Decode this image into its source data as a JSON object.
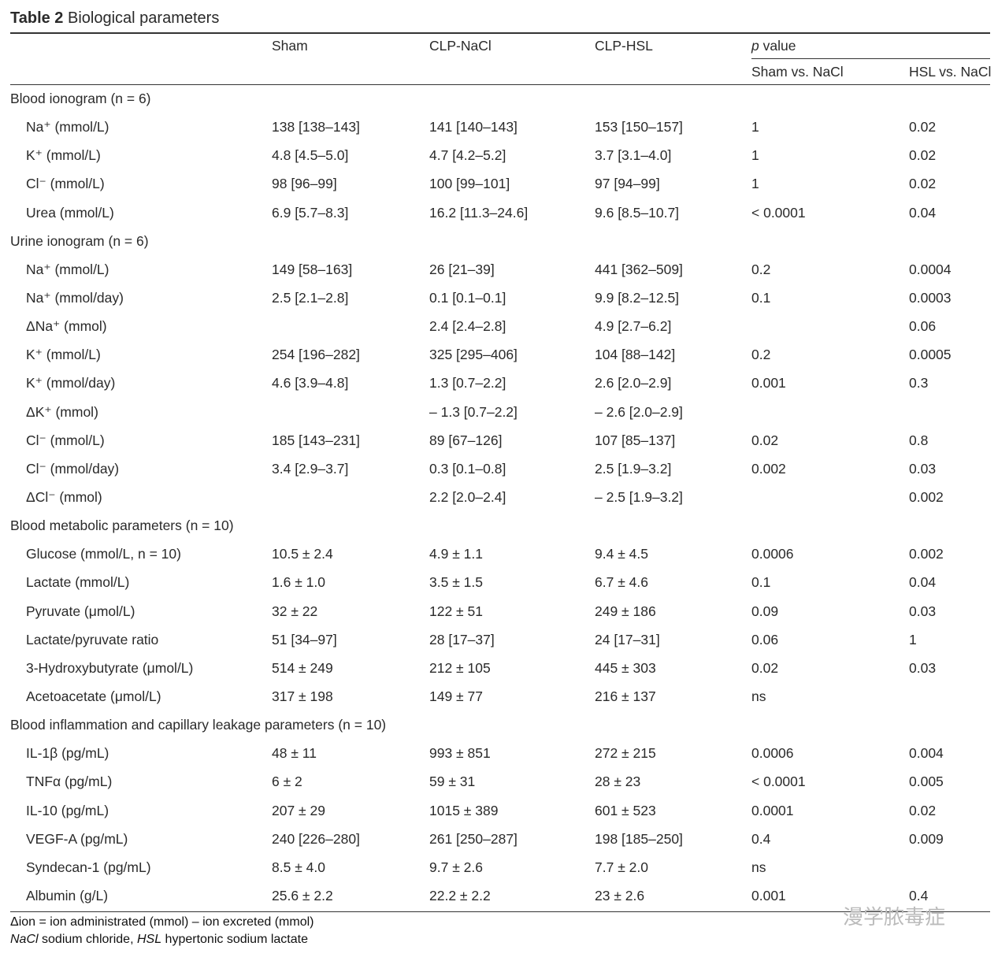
{
  "header": {
    "label": "Table 2",
    "caption": "Biological parameters"
  },
  "table": {
    "columns": [
      "Sham",
      "CLP-NaCl",
      "CLP-HSL"
    ],
    "pgroup": {
      "symbol": "p",
      "text": "value",
      "subcolumns": [
        "Sham vs. NaCl",
        "HSL vs. NaCl"
      ]
    },
    "sections": [
      {
        "title": "Blood ionogram (n = 6)",
        "rows": [
          {
            "label": "Na⁺ (mmol/L)",
            "cells": [
              "138 [138–143]",
              "141 [140–143]",
              "153 [150–157]",
              "1",
              "0.02"
            ]
          },
          {
            "label": "K⁺ (mmol/L)",
            "cells": [
              "4.8 [4.5–5.0]",
              "4.7 [4.2–5.2]",
              "3.7 [3.1–4.0]",
              "1",
              "0.02"
            ]
          },
          {
            "label": "Cl⁻ (mmol/L)",
            "cells": [
              "98 [96–99]",
              "100 [99–101]",
              "97 [94–99]",
              "1",
              "0.02"
            ]
          },
          {
            "label": "Urea (mmol/L)",
            "cells": [
              "6.9 [5.7–8.3]",
              "16.2 [11.3–24.6]",
              "9.6 [8.5–10.7]",
              "< 0.0001",
              "0.04"
            ]
          }
        ]
      },
      {
        "title": "Urine ionogram (n = 6)",
        "rows": [
          {
            "label": "Na⁺ (mmol/L)",
            "cells": [
              "149 [58–163]",
              "26 [21–39]",
              "441 [362–509]",
              "0.2",
              "0.0004"
            ]
          },
          {
            "label": "Na⁺ (mmol/day)",
            "cells": [
              "2.5 [2.1–2.8]",
              "0.1 [0.1–0.1]",
              "9.9 [8.2–12.5]",
              "0.1",
              "0.0003"
            ]
          },
          {
            "label": "ΔNa⁺ (mmol)",
            "cells": [
              null,
              "2.4 [2.4–2.8]",
              "4.9 [2.7–6.2]",
              null,
              "0.06"
            ]
          },
          {
            "label": "K⁺ (mmol/L)",
            "cells": [
              "254 [196–282]",
              "325 [295–406]",
              "104 [88–142]",
              "0.2",
              "0.0005"
            ]
          },
          {
            "label": "K⁺ (mmol/day)",
            "cells": [
              "4.6 [3.9–4.8]",
              "1.3 [0.7–2.2]",
              "2.6 [2.0–2.9]",
              "0.001",
              "0.3"
            ]
          },
          {
            "label": "ΔK⁺ (mmol)",
            "cells": [
              null,
              "– 1.3 [0.7–2.2]",
              "– 2.6 [2.0–2.9]",
              null,
              null
            ]
          },
          {
            "label": "Cl⁻ (mmol/L)",
            "cells": [
              "185 [143–231]",
              "89 [67–126]",
              "107 [85–137]",
              "0.02",
              "0.8"
            ]
          },
          {
            "label": "Cl⁻ (mmol/day)",
            "cells": [
              "3.4 [2.9–3.7]",
              "0.3 [0.1–0.8]",
              "2.5 [1.9–3.2]",
              "0.002",
              "0.03"
            ]
          },
          {
            "label": "ΔCl⁻ (mmol)",
            "cells": [
              null,
              "2.2 [2.0–2.4]",
              "– 2.5 [1.9–3.2]",
              null,
              "0.002"
            ]
          }
        ]
      },
      {
        "title": "Blood metabolic parameters (n = 10)",
        "rows": [
          {
            "label": "Glucose (mmol/L, n = 10)",
            "cells": [
              "10.5 ± 2.4",
              "4.9 ± 1.1",
              "9.4 ± 4.5",
              "0.0006",
              "0.002"
            ]
          },
          {
            "label": "Lactate (mmol/L)",
            "cells": [
              "1.6 ± 1.0",
              "3.5 ± 1.5",
              "6.7 ± 4.6",
              "0.1",
              "0.04"
            ]
          },
          {
            "label": "Pyruvate (μmol/L)",
            "cells": [
              "32 ± 22",
              "122 ± 51",
              "249 ± 186",
              "0.09",
              "0.03"
            ]
          },
          {
            "label": "Lactate/pyruvate ratio",
            "cells": [
              "51 [34–97]",
              "28 [17–37]",
              "24 [17–31]",
              "0.06",
              "1"
            ]
          },
          {
            "label": "3-Hydroxybutyrate (μmol/L)",
            "cells": [
              "514 ± 249",
              "212 ± 105",
              "445 ± 303",
              "0.02",
              "0.03"
            ]
          },
          {
            "label": "Acetoacetate (μmol/L)",
            "cells": [
              "317 ± 198",
              "149 ± 77",
              "216 ± 137",
              "ns",
              null
            ]
          }
        ]
      },
      {
        "title": "Blood inflammation and capillary leakage parameters (n = 10)",
        "rows": [
          {
            "label": "IL-1β (pg/mL)",
            "cells": [
              "48 ± 11",
              "993 ± 851",
              "272 ± 215",
              "0.0006",
              "0.004"
            ]
          },
          {
            "label": "TNFα (pg/mL)",
            "cells": [
              "6 ± 2",
              "59 ± 31",
              "28 ± 23",
              "< 0.0001",
              "0.005"
            ]
          },
          {
            "label": "IL-10 (pg/mL)",
            "cells": [
              "207 ± 29",
              "1015 ± 389",
              "601 ± 523",
              "0.0001",
              "0.02"
            ]
          },
          {
            "label": "VEGF-A (pg/mL)",
            "cells": [
              "240 [226–280]",
              "261 [250–287]",
              "198 [185–250]",
              "0.4",
              "0.009"
            ]
          },
          {
            "label": "Syndecan-1 (pg/mL)",
            "cells": [
              "8.5 ± 4.0",
              "9.7 ± 2.6",
              "7.7 ± 2.0",
              "ns",
              null
            ]
          },
          {
            "label": "Albumin (g/L)",
            "cells": [
              "25.6 ± 2.2",
              "22.2 ± 2.2",
              "23 ± 2.6",
              "0.001",
              "0.4"
            ]
          }
        ]
      }
    ]
  },
  "footnotes": [
    "Δion = ion administrated (mmol) – ion excreted (mmol)",
    [
      "NaCl",
      "sodium chloride,",
      "HSL",
      "hypertonic sodium lactate"
    ]
  ],
  "watermark": "漫学脓毒症"
}
